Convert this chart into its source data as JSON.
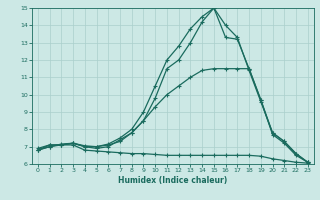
{
  "title": "",
  "xlabel": "Humidex (Indice chaleur)",
  "ylabel": "",
  "background_color": "#cce8e5",
  "grid_color": "#aacfcc",
  "line_color": "#1a6b5e",
  "x": [
    0,
    1,
    2,
    3,
    4,
    5,
    6,
    7,
    8,
    9,
    10,
    11,
    12,
    13,
    14,
    15,
    16,
    17,
    18,
    19,
    20,
    21,
    22,
    23
  ],
  "line1": [
    6.8,
    7.1,
    7.1,
    7.1,
    6.8,
    6.75,
    6.7,
    6.65,
    6.6,
    6.6,
    6.55,
    6.5,
    6.5,
    6.5,
    6.5,
    6.5,
    6.5,
    6.5,
    6.5,
    6.45,
    6.3,
    6.2,
    6.1,
    6.05
  ],
  "line2": [
    6.9,
    7.1,
    7.1,
    7.2,
    7.0,
    7.0,
    7.1,
    7.3,
    7.8,
    8.5,
    9.3,
    10.0,
    10.5,
    11.0,
    11.4,
    11.5,
    11.5,
    11.5,
    11.5,
    9.7,
    7.7,
    7.2,
    6.5,
    6.1
  ],
  "line3": [
    6.8,
    7.0,
    7.1,
    7.2,
    7.0,
    6.9,
    7.0,
    7.4,
    7.8,
    8.5,
    9.8,
    11.5,
    12.0,
    13.0,
    14.2,
    15.0,
    13.3,
    13.2,
    11.5,
    9.7,
    7.8,
    7.3,
    6.6,
    6.1
  ],
  "line4": [
    6.8,
    7.0,
    7.15,
    7.2,
    7.05,
    7.0,
    7.15,
    7.5,
    8.0,
    9.0,
    10.5,
    12.0,
    12.8,
    13.8,
    14.5,
    15.0,
    14.0,
    13.3,
    11.4,
    9.6,
    7.8,
    7.3,
    6.6,
    6.1
  ],
  "ylim": [
    6,
    15
  ],
  "xlim": [
    -0.5,
    23.5
  ],
  "yticks": [
    6,
    7,
    8,
    9,
    10,
    11,
    12,
    13,
    14,
    15
  ],
  "xticks": [
    0,
    1,
    2,
    3,
    4,
    5,
    6,
    7,
    8,
    9,
    10,
    11,
    12,
    13,
    14,
    15,
    16,
    17,
    18,
    19,
    20,
    21,
    22,
    23
  ]
}
